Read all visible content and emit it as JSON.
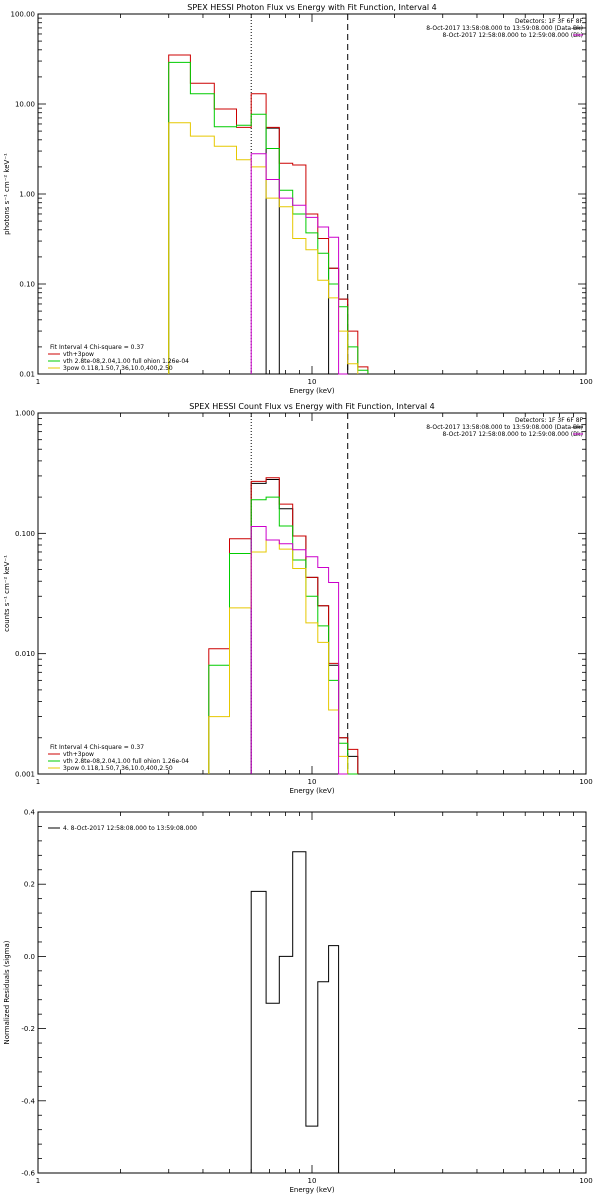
{
  "chart_data": [
    {
      "type": "line",
      "step": true,
      "log_x": true,
      "log_y": true,
      "title": "SPEX HESSI Photon Flux vs Energy with Fit Function, Interval 4",
      "xlabel": "Energy (keV)",
      "ylabel": "photons s⁻¹ cm⁻² keV⁻¹",
      "xlim": [
        1,
        100
      ],
      "ylim": [
        0.01,
        100
      ],
      "x_ticks": [
        {
          "v": 1,
          "label": "1"
        },
        {
          "v": 10,
          "label": "10"
        },
        {
          "v": 100,
          "label": "100"
        }
      ],
      "y_ticks": [
        {
          "v": 0.01,
          "label": "0.01"
        },
        {
          "v": 0.1,
          "label": "0.10"
        },
        {
          "v": 1,
          "label": "1.00"
        },
        {
          "v": 10,
          "label": "10.00"
        },
        {
          "v": 100,
          "label": "100.00"
        }
      ],
      "vlines": [
        {
          "x": 6.0,
          "style": "dotted"
        },
        {
          "x": 13.5,
          "style": "dashed"
        }
      ],
      "header_lines": [
        "Detectors: 1F 3F 6F 8F",
        "8-Oct-2017 13:58:08.000 to 13:59:08.000 (Data-Bk)",
        "8-Oct-2017 12:58:08.000 to 12:59:08.000 (Bk)"
      ],
      "header_colors": [
        "",
        "#000000",
        "#cc00cc"
      ],
      "legend_lines": [
        "Fit Interval 4   Chi-square = 0.37",
        "vth+3pow",
        "vth 2.8te-08,2.04,1.00  full ohion 1.26e-04",
        "3pow 0.118,1.50,7.36,10.0,400,2.50"
      ],
      "legend_colors": [
        "",
        "#cc0000",
        "#00cc00",
        "#e6c800"
      ],
      "edges": [
        3,
        3.6,
        4.4,
        5.3,
        6.0,
        6.8,
        7.6,
        8.5,
        9.5,
        10.5,
        11.5,
        12.5,
        13.5,
        14.7,
        16.0
      ],
      "series": [
        {
          "color": "#000000",
          "values": [
            null,
            null,
            null,
            null,
            null,
            5.4,
            null,
            null,
            null,
            null,
            0.15,
            0.068,
            null,
            null
          ]
        },
        {
          "color": "#cc0000",
          "values": [
            35,
            17,
            8.8,
            5.5,
            13,
            5.5,
            2.2,
            2.1,
            0.6,
            0.32,
            0.15,
            0.068,
            0.03,
            0.012
          ]
        },
        {
          "color": "#00cc00",
          "values": [
            29,
            13,
            5.6,
            5.8,
            7.7,
            3.2,
            1.1,
            0.6,
            0.37,
            0.22,
            0.1,
            0.056,
            0.02,
            0.011
          ]
        },
        {
          "color": "#e6c800",
          "values": [
            6.2,
            4.4,
            3.4,
            2.4,
            2.0,
            0.9,
            0.72,
            0.32,
            0.24,
            0.11,
            0.07,
            0.03,
            0.013,
            null
          ]
        },
        {
          "color": "#cc00cc",
          "values": [
            null,
            null,
            null,
            null,
            2.8,
            1.45,
            0.9,
            0.75,
            0.55,
            0.43,
            0.33,
            0.006,
            null,
            null
          ]
        }
      ]
    },
    {
      "type": "line",
      "step": true,
      "log_x": true,
      "log_y": true,
      "title": "SPEX HESSI Count Flux vs Energy with Fit Function, Interval 4",
      "xlabel": "Energy (keV)",
      "ylabel": "counts s⁻¹ cm⁻² keV⁻¹",
      "xlim": [
        1,
        100
      ],
      "ylim": [
        0.001,
        1
      ],
      "x_ticks": [
        {
          "v": 1,
          "label": "1"
        },
        {
          "v": 10,
          "label": "10"
        },
        {
          "v": 100,
          "label": "100"
        }
      ],
      "y_ticks": [
        {
          "v": 0.001,
          "label": "0.001"
        },
        {
          "v": 0.01,
          "label": "0.010"
        },
        {
          "v": 0.1,
          "label": "0.100"
        },
        {
          "v": 1,
          "label": "1.000"
        }
      ],
      "vlines": [
        {
          "x": 6.0,
          "style": "dotted"
        },
        {
          "x": 13.5,
          "style": "dashed"
        }
      ],
      "header_lines": [
        "Detectors: 1F 3F 6F 8F",
        "8-Oct-2017 13:58:08.000 to 13:59:08.000 (Data-Bk)",
        "8-Oct-2017 12:58:08.000 to 12:59:08.000 (Bk)"
      ],
      "header_colors": [
        "",
        "#000000",
        "#cc00cc"
      ],
      "legend_lines": [
        "Fit Interval 4   Chi-square = 0.37",
        "vth+3pow",
        "vth 2.8te-08,2.04,1.00  full ohion 1.26e-04",
        "3pow 0.118,1.50,7.36,10.0,400,2.50"
      ],
      "legend_colors": [
        "",
        "#cc0000",
        "#00cc00",
        "#e6c800"
      ],
      "edges": [
        4.2,
        5.0,
        6.0,
        6.8,
        7.6,
        8.5,
        9.5,
        10.5,
        11.5,
        12.5,
        13.5,
        14.7,
        16.0
      ],
      "series": [
        {
          "color": "#000000",
          "values": [
            null,
            null,
            0.26,
            0.28,
            0.16,
            0.095,
            0.043,
            0.025,
            0.008,
            0.002,
            0.0014,
            null
          ]
        },
        {
          "color": "#cc0000",
          "values": [
            0.011,
            0.09,
            0.27,
            0.29,
            0.175,
            0.095,
            0.043,
            0.025,
            0.0083,
            0.002,
            0.0016,
            null
          ]
        },
        {
          "color": "#00cc00",
          "values": [
            0.008,
            0.068,
            0.19,
            0.2,
            0.115,
            0.06,
            0.03,
            0.017,
            0.006,
            0.0018,
            0.001,
            null
          ]
        },
        {
          "color": "#e6c800",
          "values": [
            0.003,
            0.024,
            0.07,
            0.088,
            0.074,
            0.051,
            0.018,
            0.0124,
            0.0034,
            0.0014,
            null,
            null
          ]
        },
        {
          "color": "#cc00cc",
          "values": [
            null,
            null,
            0.114,
            0.088,
            0.082,
            0.073,
            0.064,
            0.052,
            0.039,
            0.001,
            null,
            null
          ]
        }
      ]
    },
    {
      "type": "line",
      "step": true,
      "log_x": true,
      "log_y": false,
      "title": "",
      "xlabel": "Energy (keV)",
      "ylabel": "Normalized Residuals (sigma)",
      "xlim": [
        1,
        100
      ],
      "ylim": [
        -0.6,
        0.4
      ],
      "x_ticks": [
        {
          "v": 1,
          "label": "1"
        },
        {
          "v": 10,
          "label": "10"
        },
        {
          "v": 100,
          "label": "100"
        }
      ],
      "y_ticks": [
        {
          "v": -0.6,
          "label": "-0.6"
        },
        {
          "v": -0.4,
          "label": "-0.4"
        },
        {
          "v": -0.2,
          "label": "-0.2"
        },
        {
          "v": 0.0,
          "label": "0.0"
        },
        {
          "v": 0.2,
          "label": "0.2"
        },
        {
          "v": 0.4,
          "label": "0.4"
        }
      ],
      "vlines": [],
      "header_lines": [],
      "header_colors": [],
      "legend_lines": [
        "4.  8-Oct-2017 12:58:08.000 to 13:59:08.000"
      ],
      "legend_colors": [
        "#000000"
      ],
      "edges": [
        6.0,
        6.8,
        7.6,
        8.5,
        9.5,
        10.5,
        11.5,
        12.5,
        13.5
      ],
      "series": [
        {
          "color": "#000000",
          "values": [
            0.18,
            -0.13,
            0.0,
            0.29,
            -0.47,
            -0.07,
            0.03,
            -0.6
          ]
        }
      ]
    }
  ]
}
